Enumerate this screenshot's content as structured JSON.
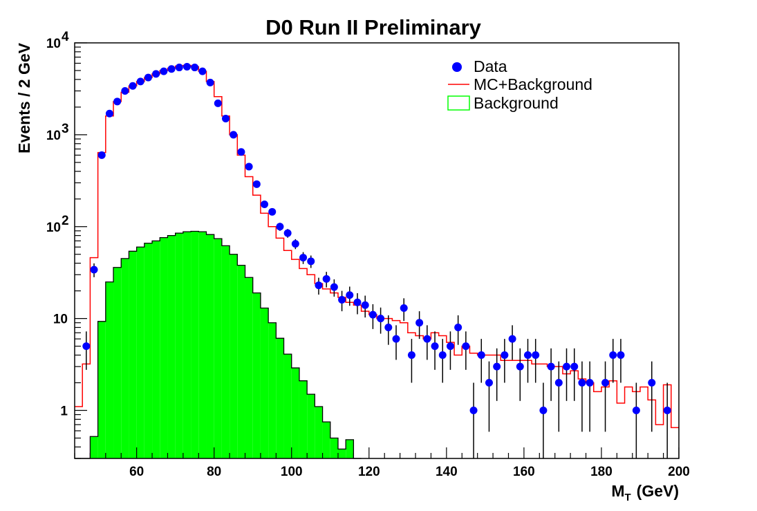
{
  "chart_data": {
    "type": "histogram",
    "title": "D0 Run II Preliminary",
    "xlabel": "M",
    "xlabel_sub": "T",
    "xlabel_unit": "(GeV)",
    "ylabel": "Events / 2 GeV",
    "xscale": "linear",
    "yscale": "log",
    "xlim": [
      44,
      200
    ],
    "ylim": [
      0.3,
      10000
    ],
    "xticks": [
      60,
      80,
      100,
      120,
      140,
      160,
      180,
      200
    ],
    "xtick_labels": [
      "60",
      "80",
      "100",
      "120",
      "140",
      "160",
      "180",
      "200"
    ],
    "yticks": [
      {
        "value": 1,
        "label": "1"
      },
      {
        "value": 10,
        "label": "10"
      },
      {
        "value": 100,
        "base": "10",
        "exp": "2"
      },
      {
        "value": 1000,
        "base": "10",
        "exp": "3"
      },
      {
        "value": 10000,
        "base": "10",
        "exp": "4"
      }
    ],
    "bin_width": 2,
    "legend_position": "top-right",
    "series": [
      {
        "name": "Background",
        "style": "filled-histogram",
        "color": "#00ff00",
        "edge_color": "#000000",
        "bin_starts": [
          44,
          46,
          48,
          50,
          52,
          54,
          56,
          58,
          60,
          62,
          64,
          66,
          68,
          70,
          72,
          74,
          76,
          78,
          80,
          82,
          84,
          86,
          88,
          90,
          92,
          94,
          96,
          98,
          100,
          102,
          104,
          106,
          108,
          110,
          112,
          114,
          116
        ],
        "values": [
          0.3,
          0.3,
          0.52,
          9.3,
          25,
          36,
          45,
          54,
          60,
          66,
          70,
          76,
          80,
          85,
          88,
          89,
          88,
          82,
          74,
          62,
          50,
          38,
          28,
          19,
          13,
          9,
          6.1,
          4.1,
          2.9,
          2.1,
          1.5,
          1.1,
          0.75,
          0.5,
          0.38,
          0.48,
          0.3
        ]
      },
      {
        "name": "MC+Background",
        "style": "step-line",
        "color": "#ff0000",
        "bin_starts": [
          44,
          46,
          48,
          50,
          52,
          54,
          56,
          58,
          60,
          62,
          64,
          66,
          68,
          70,
          72,
          74,
          76,
          78,
          80,
          82,
          84,
          86,
          88,
          90,
          92,
          94,
          96,
          98,
          100,
          102,
          104,
          106,
          108,
          110,
          112,
          114,
          116,
          118,
          120,
          122,
          124,
          126,
          128,
          130,
          132,
          134,
          136,
          138,
          140,
          142,
          144,
          146,
          148,
          150,
          152,
          154,
          156,
          158,
          160,
          162,
          164,
          166,
          168,
          170,
          172,
          174,
          176,
          178,
          180,
          182,
          184,
          186,
          188,
          190,
          192,
          194,
          196,
          198
        ],
        "values": [
          1.1,
          3.2,
          46,
          640,
          1600,
          2300,
          2900,
          3400,
          3800,
          4200,
          4600,
          5000,
          5300,
          5600,
          5700,
          5500,
          4900,
          3800,
          2600,
          1600,
          1000,
          600,
          350,
          220,
          140,
          100,
          75,
          55,
          44,
          35,
          30,
          24,
          21,
          19,
          17,
          15,
          14,
          12,
          11,
          10,
          10,
          9.5,
          9,
          7,
          6.5,
          6,
          7,
          6.5,
          5.5,
          4,
          5,
          4.2,
          4,
          4,
          4,
          3.5,
          3.5,
          3.5,
          3.5,
          3.2,
          3.2,
          3,
          3,
          2.5,
          2.7,
          2.2,
          2,
          1.6,
          1.8,
          2.1,
          1.2,
          1.8,
          1.6,
          1.8,
          1.3,
          0.7,
          1.9,
          0.65
        ]
      },
      {
        "name": "Data",
        "style": "points-with-errors",
        "color": "#0000ff",
        "x": [
          47,
          49,
          51,
          53,
          55,
          57,
          59,
          61,
          63,
          65,
          67,
          69,
          71,
          73,
          75,
          77,
          79,
          81,
          83,
          85,
          87,
          89,
          91,
          93,
          95,
          97,
          99,
          101,
          103,
          105,
          107,
          109,
          111,
          113,
          115,
          117,
          119,
          121,
          123,
          125,
          127,
          129,
          131,
          133,
          135,
          137,
          139,
          141,
          143,
          145,
          147,
          149,
          151,
          153,
          155,
          157,
          159,
          161,
          163,
          165,
          167,
          169,
          171,
          173,
          175,
          177,
          181,
          183,
          185,
          189,
          193,
          197
        ],
        "y": [
          5,
          34,
          600,
          1700,
          2300,
          3000,
          3400,
          3800,
          4200,
          4600,
          4900,
          5200,
          5400,
          5500,
          5400,
          4900,
          3700,
          2200,
          1500,
          1000,
          650,
          450,
          290,
          175,
          145,
          100,
          85,
          65,
          46,
          42,
          23,
          27,
          22,
          16,
          18,
          15,
          14,
          11,
          10,
          8,
          6,
          13,
          4,
          9,
          6,
          5,
          4,
          5,
          8,
          5,
          1,
          4,
          2,
          3,
          4,
          6,
          3,
          4,
          4,
          1,
          3,
          2,
          3,
          3,
          2,
          2,
          2,
          4,
          4,
          1,
          2,
          1
        ]
      }
    ],
    "legend": [
      {
        "label": "Data",
        "marker": "dot"
      },
      {
        "label": "MC+Background",
        "marker": "line"
      },
      {
        "label": "Background",
        "marker": "box"
      }
    ]
  }
}
